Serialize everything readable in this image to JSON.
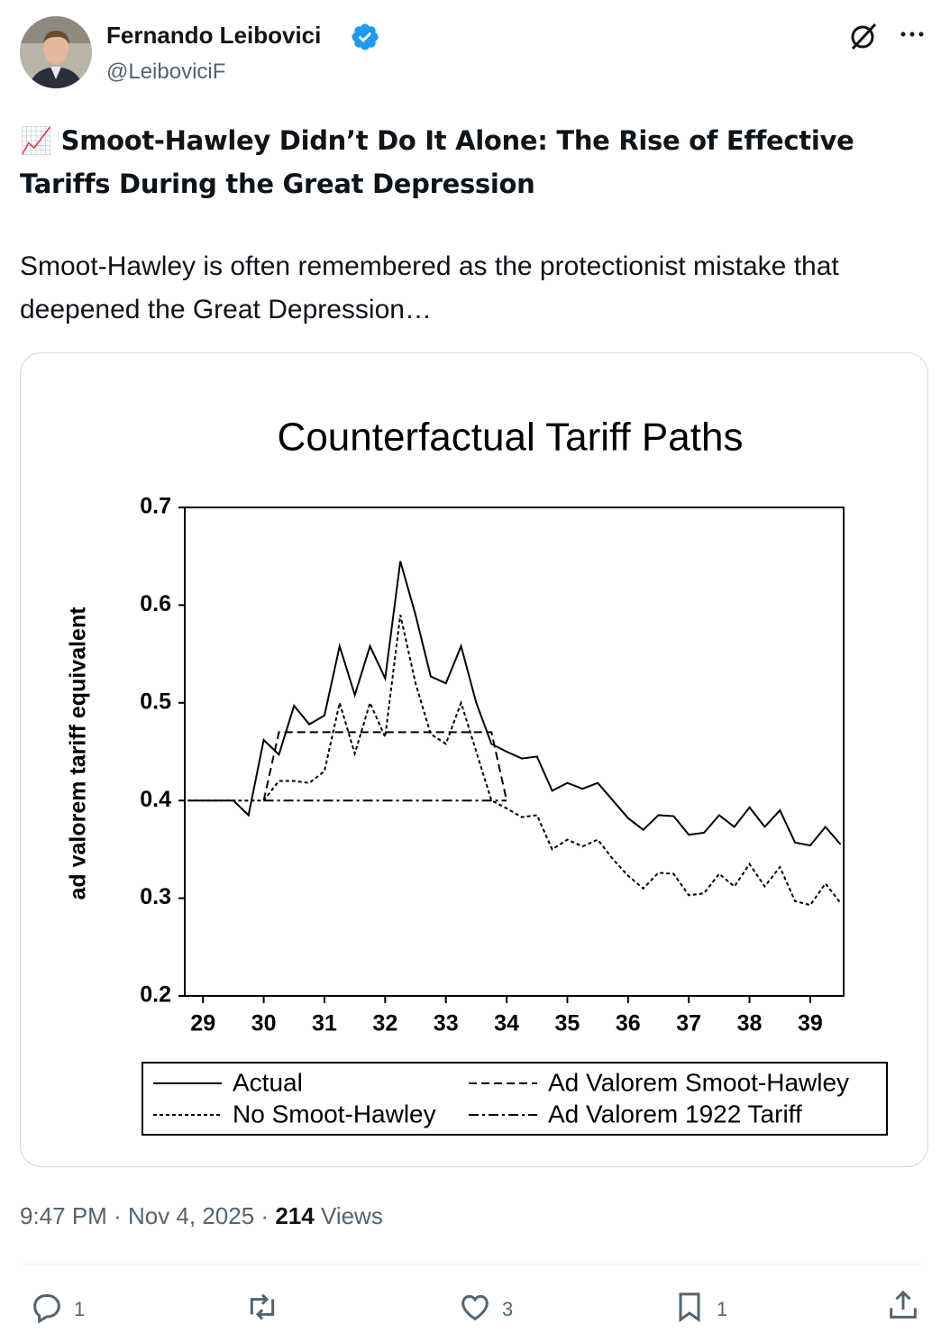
{
  "author": {
    "name": "Fernando Leibovici",
    "handle": "@LeiboviciF"
  },
  "post": {
    "emoji": "📈",
    "title": "Smoot-Hawley Didn’t Do It Alone: The Rise of Effective Tariffs During the Great Depression",
    "body": "Smoot-Hawley is often remembered as the protectionist mistake that deepened the Great Depression…"
  },
  "meta": {
    "time": "9:47 PM",
    "separator": "·",
    "date": "Nov 4, 2025",
    "views_count": "214",
    "views_label": "Views"
  },
  "actions": {
    "replies": "1",
    "likes": "3",
    "bookmarks": "1"
  },
  "chart_data": {
    "type": "line",
    "title": "Counterfactual Tariff Paths",
    "ylabel": "ad valorem tariff equivalent",
    "x": [
      1928.75,
      1929.0,
      1929.25,
      1929.5,
      1929.75,
      1930.0,
      1930.25,
      1930.5,
      1930.75,
      1931.0,
      1931.25,
      1931.5,
      1931.75,
      1932.0,
      1932.25,
      1932.5,
      1932.75,
      1933.0,
      1933.25,
      1933.5,
      1933.75,
      1934.0,
      1934.25,
      1934.5,
      1934.75,
      1935.0,
      1935.25,
      1935.5,
      1935.75,
      1936.0,
      1936.25,
      1936.5,
      1936.75,
      1937.0,
      1937.25,
      1937.5,
      1937.75,
      1938.0,
      1938.25,
      1938.5,
      1938.75,
      1939.0,
      1939.25,
      1939.5
    ],
    "series": [
      {
        "name": "Actual",
        "color": "#000000",
        "dash": "solid",
        "values": [
          0.4,
          0.4,
          0.4,
          0.4,
          0.385,
          0.462,
          0.447,
          0.497,
          0.478,
          0.487,
          0.558,
          0.508,
          0.558,
          0.525,
          0.645,
          0.59,
          0.527,
          0.52,
          0.558,
          0.5,
          0.458,
          0.45,
          0.443,
          0.445,
          0.41,
          0.418,
          0.412,
          0.418,
          0.4,
          0.382,
          0.37,
          0.385,
          0.384,
          0.365,
          0.367,
          0.385,
          0.373,
          0.393,
          0.373,
          0.39,
          0.357,
          0.354,
          0.373,
          0.355
        ]
      },
      {
        "name": "No Smoot-Hawley",
        "color": "#000000",
        "dash": "dotted",
        "values": [
          0.4,
          0.4,
          0.4,
          0.4,
          0.4,
          0.4,
          0.42,
          0.42,
          0.418,
          0.43,
          0.5,
          0.448,
          0.5,
          0.465,
          0.59,
          0.52,
          0.468,
          0.458,
          0.5,
          0.45,
          0.4,
          0.392,
          0.383,
          0.385,
          0.35,
          0.36,
          0.353,
          0.36,
          0.34,
          0.323,
          0.31,
          0.326,
          0.325,
          0.303,
          0.305,
          0.325,
          0.312,
          0.335,
          0.312,
          0.332,
          0.297,
          0.293,
          0.315,
          0.295
        ]
      },
      {
        "name": "Ad Valorem Smoot-Hawley",
        "color": "#000000",
        "dash": "dashed",
        "x": [
          1930.0,
          1930.25,
          1933.75,
          1934.0
        ],
        "values": [
          0.4,
          0.47,
          0.47,
          0.4
        ]
      },
      {
        "name": "Ad Valorem 1922 Tariff",
        "color": "#000000",
        "dash": "dashdot",
        "x": [
          1930.0,
          1934.0
        ],
        "values": [
          0.4,
          0.4
        ]
      }
    ],
    "xlim": [
      1928.7,
      1939.55
    ],
    "xticks": [
      {
        "value": 1929,
        "label": "29"
      },
      {
        "value": 1930,
        "label": "30"
      },
      {
        "value": 1931,
        "label": "31"
      },
      {
        "value": 1932,
        "label": "32"
      },
      {
        "value": 1933,
        "label": "33"
      },
      {
        "value": 1934,
        "label": "34"
      },
      {
        "value": 1935,
        "label": "35"
      },
      {
        "value": 1936,
        "label": "36"
      },
      {
        "value": 1937,
        "label": "37"
      },
      {
        "value": 1938,
        "label": "38"
      },
      {
        "value": 1939,
        "label": "39"
      }
    ],
    "ylim": [
      0.2,
      0.7
    ],
    "yticks": [
      0.2,
      0.3,
      0.4,
      0.5,
      0.6,
      0.7
    ],
    "grid": false,
    "legend": "bottom"
  }
}
